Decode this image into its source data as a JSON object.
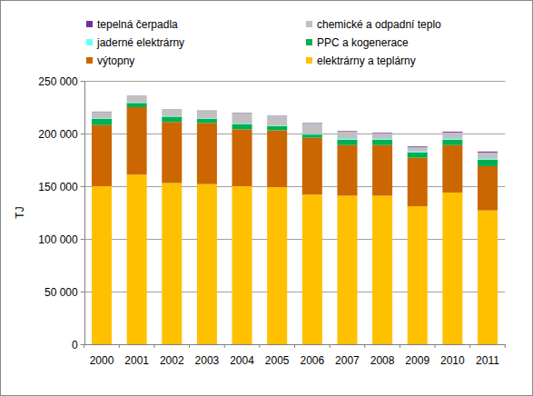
{
  "chart_data": {
    "type": "bar",
    "stacked": true,
    "grid": true,
    "legend": "top",
    "y_label": "TJ",
    "categories": [
      "2000",
      "2001",
      "2002",
      "2003",
      "2004",
      "2005",
      "2006",
      "2007",
      "2008",
      "2009",
      "2010",
      "2011"
    ],
    "ylim": [
      0,
      250000
    ],
    "yticks": [
      0,
      {
        "value": 50000,
        "label": "50 000"
      },
      {
        "value": 100000,
        "label": "100 000"
      },
      {
        "value": 150000,
        "label": "150 000"
      },
      {
        "value": 200000,
        "label": "200 000"
      },
      {
        "value": 250000,
        "label": "250 000"
      }
    ],
    "series": [
      {
        "name": "elektrárny a teplárny",
        "color": "#ffc000",
        "values": [
          150000,
          161000,
          153000,
          152000,
          150000,
          149000,
          142000,
          141000,
          141000,
          131000,
          144000,
          127000
        ]
      },
      {
        "name": "výtopny",
        "color": "#cc6600",
        "values": [
          58000,
          64000,
          58000,
          58000,
          54000,
          54000,
          54000,
          48000,
          48000,
          46000,
          45000,
          42000
        ]
      },
      {
        "name": "PPC a kogenerace",
        "color": "#00b050",
        "values": [
          6000,
          4000,
          5000,
          4000,
          5000,
          4000,
          3000,
          5000,
          5000,
          5000,
          5000,
          6000
        ]
      },
      {
        "name": "jaderné elektrárny",
        "color": "#66ffff",
        "values": [
          500,
          500,
          500,
          500,
          500,
          500,
          500,
          1000,
          1000,
          1000,
          1000,
          1000
        ]
      },
      {
        "name": "chemické a odpadní teplo",
        "color": "#c0c0c0",
        "values": [
          6000,
          6000,
          6000,
          7000,
          10000,
          9000,
          10000,
          7000,
          5000,
          4000,
          6000,
          6000
        ]
      },
      {
        "name": "tepelná čerpadla",
        "color": "#7030a0",
        "values": [
          300,
          300,
          300,
          300,
          300,
          300,
          400,
          500,
          600,
          700,
          800,
          900
        ]
      }
    ]
  }
}
